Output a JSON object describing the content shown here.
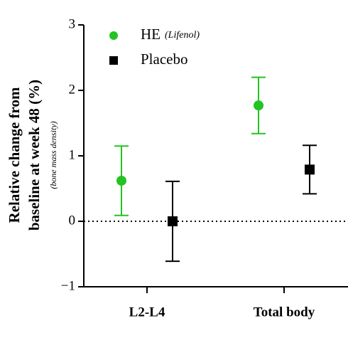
{
  "chart_data": {
    "type": "errorbar",
    "ylabel": [
      "Relative change from",
      "baseline at week 48 (%)"
    ],
    "ylabel_note": "(bone mass density)",
    "categories": [
      "L2-L4",
      "Total body"
    ],
    "series": [
      {
        "name": "HE",
        "name_note": "(Lifenol)",
        "color": "#22c322",
        "marker": "circle",
        "values": [
          0.62,
          1.77
        ],
        "error": [
          0.53,
          0.43
        ]
      },
      {
        "name": "Placebo",
        "color": "#000000",
        "marker": "square",
        "values": [
          0,
          0.79
        ],
        "error": [
          0.61,
          0.37
        ]
      }
    ],
    "ylim": [
      -1,
      3
    ],
    "yticks": [
      {
        "value": -1,
        "label": "−1"
      },
      0,
      1,
      2,
      3
    ],
    "reference_line": 0
  }
}
